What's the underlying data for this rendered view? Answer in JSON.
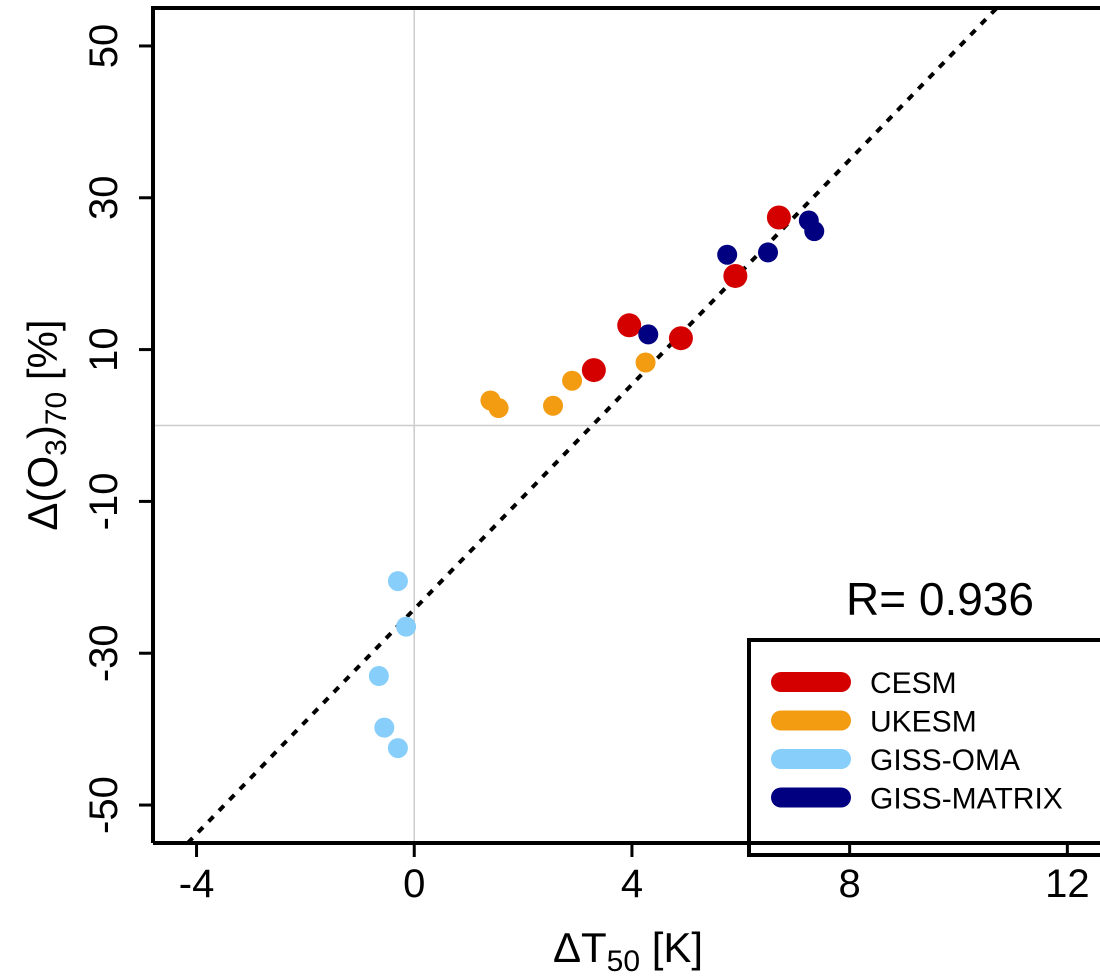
{
  "chart_data": {
    "type": "scatter",
    "title": "",
    "xlabel": {
      "prefix": "ΔT",
      "sub": "50",
      "suffix": " [K]"
    },
    "ylabel": {
      "prefix": "Δ(O",
      "sub1": "3",
      "mid": ")",
      "sub2": "70",
      "suffix": " [%]"
    },
    "xlim": [
      -4.8,
      12.6
    ],
    "ylim": [
      -55,
      55
    ],
    "xticks": [
      -4,
      0,
      4,
      8,
      12
    ],
    "xtick_labels": [
      "-4",
      "0",
      "4",
      "8",
      "12"
    ],
    "yticks": [
      -50,
      -30,
      -10,
      10,
      30,
      50
    ],
    "ytick_labels": [
      "-50",
      "-30",
      "-10",
      "10",
      "30",
      "50"
    ],
    "zero_lines": true,
    "annotation": "R= 0.936",
    "fit_line": {
      "slope": 7.4,
      "intercept": -24.2,
      "style": "dotted"
    },
    "legend_position": "bottom-right",
    "series": [
      {
        "name": "CESM",
        "color": "#d40000",
        "marker": "large",
        "points": [
          [
            3.3,
            7.3
          ],
          [
            3.95,
            13.2
          ],
          [
            4.9,
            11.5
          ],
          [
            5.9,
            19.7
          ],
          [
            6.7,
            27.4
          ]
        ]
      },
      {
        "name": "UKESM",
        "color": "#f39c12",
        "marker": "medium",
        "points": [
          [
            1.4,
            3.3
          ],
          [
            1.55,
            2.3
          ],
          [
            2.55,
            2.6
          ],
          [
            2.9,
            5.9
          ],
          [
            4.25,
            8.3
          ]
        ]
      },
      {
        "name": "GISS-OMA",
        "color": "#87cefa",
        "marker": "medium",
        "points": [
          [
            -0.3,
            -20.5
          ],
          [
            -0.15,
            -26.5
          ],
          [
            -0.65,
            -33.0
          ],
          [
            -0.55,
            -39.8
          ],
          [
            -0.3,
            -42.5
          ]
        ]
      },
      {
        "name": "GISS-MATRIX",
        "color": "#000080",
        "marker": "medium",
        "points": [
          [
            4.3,
            12.0
          ],
          [
            5.75,
            22.5
          ],
          [
            6.5,
            22.8
          ],
          [
            7.25,
            27.0
          ],
          [
            7.35,
            25.6
          ]
        ]
      }
    ]
  }
}
